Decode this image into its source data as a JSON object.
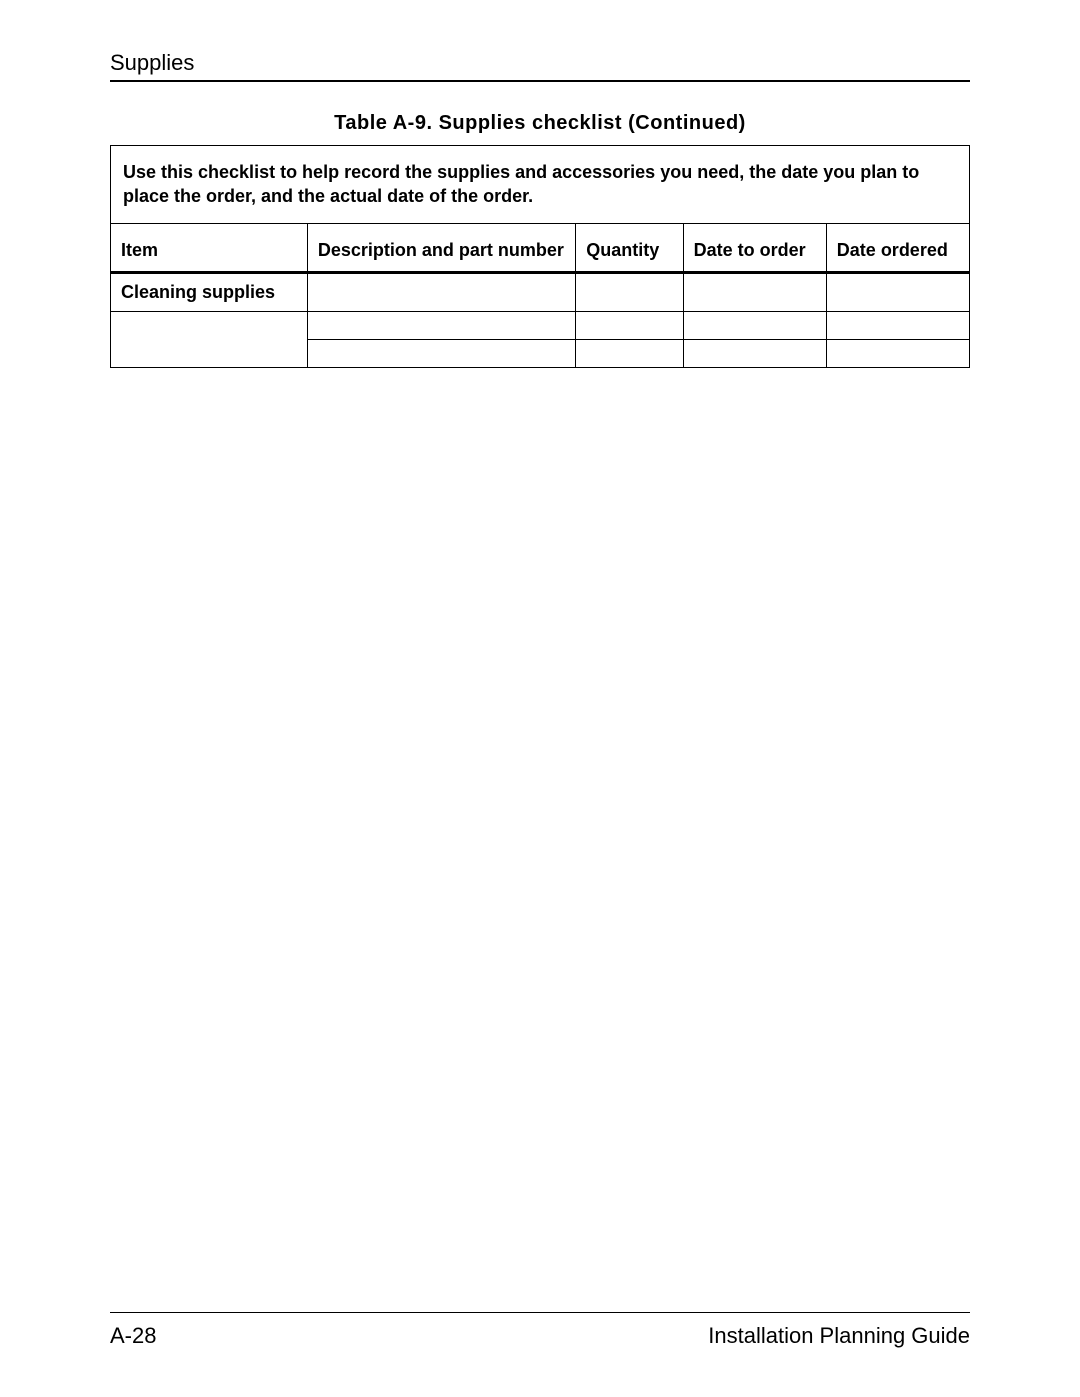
{
  "header": {
    "section_title": "Supplies"
  },
  "table": {
    "title": "Table A-9.  Supplies checklist (Continued)",
    "instructions": "Use this checklist to help record the supplies and accessories you need, the date you plan to place the order, and the actual date of the order.",
    "columns": {
      "item": "Item",
      "description": "Description and part number",
      "quantity": "Quantity",
      "date_to_order": "Date to order",
      "date_ordered": "Date ordered"
    },
    "category_label": "Cleaning supplies",
    "rows": [
      {
        "item": "",
        "description": "",
        "quantity": "",
        "date_to_order": "",
        "date_ordered": ""
      },
      {
        "item": "",
        "description": "",
        "quantity": "",
        "date_to_order": "",
        "date_ordered": ""
      }
    ]
  },
  "footer": {
    "page_number": "A-28",
    "doc_title": "Installation Planning Guide"
  },
  "styling": {
    "border_color": "#000000",
    "background_color": "#ffffff",
    "text_color": "#000000",
    "title_fontsize": 20,
    "body_fontsize": 18,
    "header_fontsize": 22
  }
}
